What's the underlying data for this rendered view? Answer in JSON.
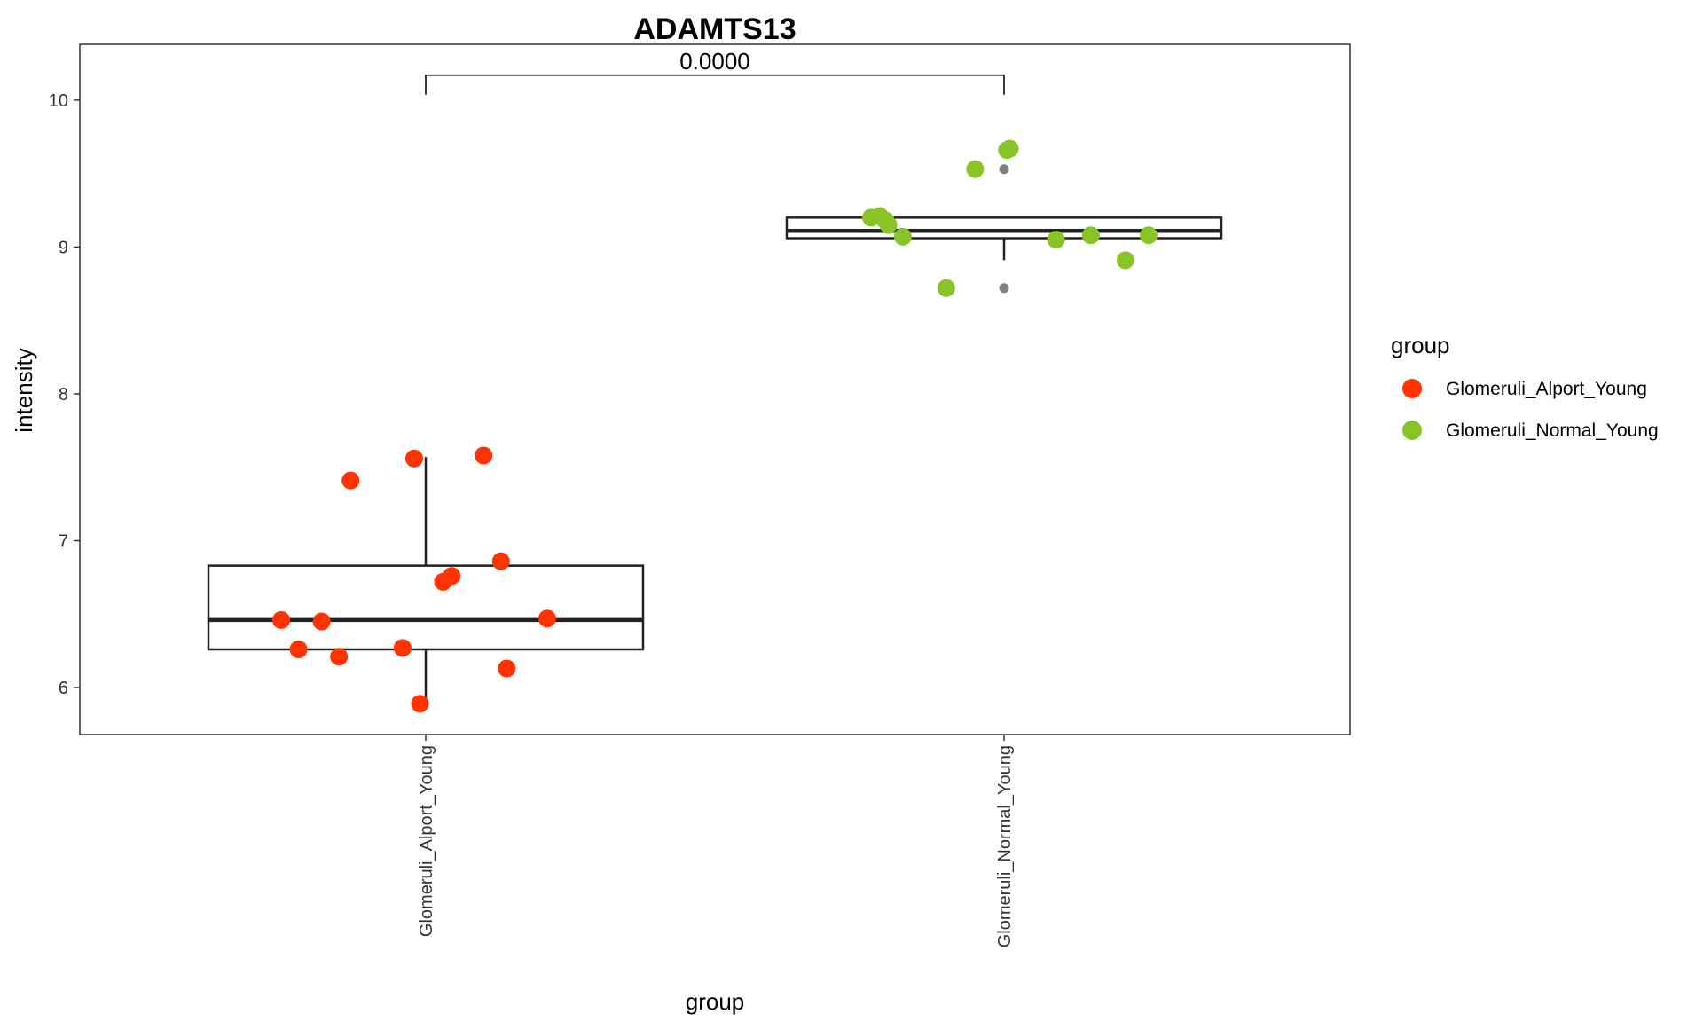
{
  "chart_data": {
    "type": "boxplot",
    "title": "ADAMTS13",
    "xlabel": "group",
    "ylabel": "intensity",
    "categories": [
      "Glomeruli_Alport_Young",
      "Glomeruli_Normal_Young"
    ],
    "ylim": [
      5.68,
      10.38
    ],
    "yticks": [
      6,
      7,
      8,
      9,
      10
    ],
    "ytick_labels": [
      "6",
      "7",
      "8",
      "9",
      "10"
    ],
    "grid": false,
    "legend": {
      "title": "group",
      "position": "right",
      "entries": [
        {
          "label": "Glomeruli_Alport_Young",
          "color": "#ff3300"
        },
        {
          "label": "Glomeruli_Normal_Young",
          "color": "#88c425"
        }
      ]
    },
    "comparison": {
      "label": "0.0000",
      "between": [
        0,
        1
      ],
      "y": 10.17
    },
    "boxes": [
      {
        "category": "Glomeruli_Alport_Young",
        "q1": 6.26,
        "median": 6.46,
        "q3": 6.83,
        "whisker_low": 5.89,
        "whisker_high": 7.57,
        "outliers": []
      },
      {
        "category": "Glomeruli_Normal_Young",
        "q1": 9.06,
        "median": 9.11,
        "q3": 9.2,
        "whisker_low": 8.91,
        "whisker_high": 9.2,
        "outliers": [
          9.53,
          9.67,
          8.72
        ]
      }
    ],
    "series": [
      {
        "name": "Glomeruli_Alport_Young",
        "color": "#ff3300",
        "points": [
          {
            "x": -0.25,
            "y": 6.46
          },
          {
            "x": -0.18,
            "y": 6.45
          },
          {
            "x": -0.22,
            "y": 6.26
          },
          {
            "x": -0.15,
            "y": 6.21
          },
          {
            "x": -0.13,
            "y": 7.41
          },
          {
            "x": -0.04,
            "y": 6.27
          },
          {
            "x": -0.02,
            "y": 7.56
          },
          {
            "x": -0.01,
            "y": 5.89
          },
          {
            "x": 0.03,
            "y": 6.72
          },
          {
            "x": 0.045,
            "y": 6.76
          },
          {
            "x": 0.1,
            "y": 7.58
          },
          {
            "x": 0.13,
            "y": 6.86
          },
          {
            "x": 0.14,
            "y": 6.13
          },
          {
            "x": 0.21,
            "y": 6.47
          }
        ]
      },
      {
        "name": "Glomeruli_Normal_Young",
        "color": "#88c425",
        "points": [
          {
            "x": -0.23,
            "y": 9.2
          },
          {
            "x": -0.215,
            "y": 9.21
          },
          {
            "x": -0.205,
            "y": 9.18
          },
          {
            "x": -0.2,
            "y": 9.15
          },
          {
            "x": -0.175,
            "y": 9.07
          },
          {
            "x": -0.1,
            "y": 8.72
          },
          {
            "x": -0.05,
            "y": 9.53
          },
          {
            "x": 0.005,
            "y": 9.66
          },
          {
            "x": 0.01,
            "y": 9.67
          },
          {
            "x": 0.09,
            "y": 9.05
          },
          {
            "x": 0.15,
            "y": 9.08
          },
          {
            "x": 0.21,
            "y": 8.91
          },
          {
            "x": 0.25,
            "y": 9.08
          }
        ]
      }
    ]
  }
}
